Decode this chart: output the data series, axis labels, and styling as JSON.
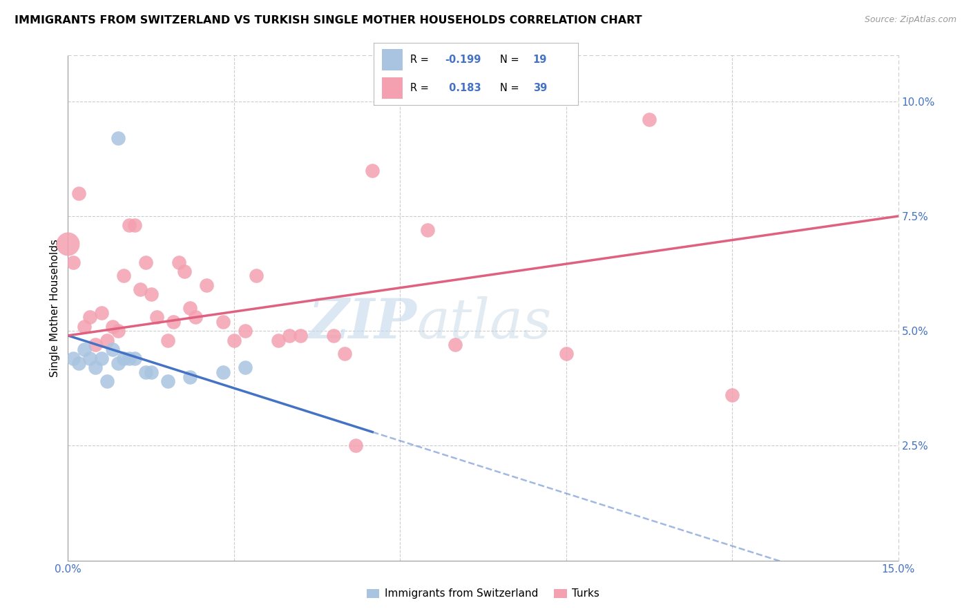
{
  "title": "IMMIGRANTS FROM SWITZERLAND VS TURKISH SINGLE MOTHER HOUSEHOLDS CORRELATION CHART",
  "source": "Source: ZipAtlas.com",
  "ylabel": "Single Mother Households",
  "xlim": [
    0,
    0.15
  ],
  "ylim": [
    0,
    0.11
  ],
  "xticks": [
    0.0,
    0.03,
    0.06,
    0.09,
    0.12,
    0.15
  ],
  "yticks_right": [
    0.025,
    0.05,
    0.075,
    0.1
  ],
  "ytick_labels_right": [
    "2.5%",
    "5.0%",
    "7.5%",
    "10.0%"
  ],
  "color_swiss": "#a8c4e0",
  "color_turks": "#f4a0b0",
  "line_color_swiss": "#4472c4",
  "line_color_turks": "#e06080",
  "watermark_zip": "ZIP",
  "watermark_atlas": "atlas",
  "swiss_x": [
    0.001,
    0.002,
    0.003,
    0.004,
    0.005,
    0.006,
    0.007,
    0.008,
    0.009,
    0.01,
    0.011,
    0.012,
    0.014,
    0.015,
    0.018,
    0.022,
    0.028,
    0.032,
    0.009
  ],
  "swiss_y": [
    0.044,
    0.043,
    0.046,
    0.044,
    0.042,
    0.044,
    0.039,
    0.046,
    0.043,
    0.044,
    0.044,
    0.044,
    0.041,
    0.041,
    0.039,
    0.04,
    0.041,
    0.042,
    0.092
  ],
  "turks_x": [
    0.001,
    0.002,
    0.003,
    0.004,
    0.005,
    0.006,
    0.007,
    0.008,
    0.009,
    0.01,
    0.011,
    0.012,
    0.013,
    0.014,
    0.015,
    0.016,
    0.018,
    0.019,
    0.02,
    0.021,
    0.022,
    0.023,
    0.025,
    0.028,
    0.03,
    0.032,
    0.034,
    0.038,
    0.04,
    0.042,
    0.048,
    0.05,
    0.052,
    0.055,
    0.065,
    0.07,
    0.09,
    0.105,
    0.12
  ],
  "turks_y": [
    0.065,
    0.08,
    0.051,
    0.053,
    0.047,
    0.054,
    0.048,
    0.051,
    0.05,
    0.062,
    0.073,
    0.073,
    0.059,
    0.065,
    0.058,
    0.053,
    0.048,
    0.052,
    0.065,
    0.063,
    0.055,
    0.053,
    0.06,
    0.052,
    0.048,
    0.05,
    0.062,
    0.048,
    0.049,
    0.049,
    0.049,
    0.045,
    0.025,
    0.085,
    0.072,
    0.047,
    0.045,
    0.096,
    0.036
  ],
  "background_color": "#ffffff",
  "grid_color": "#cccccc",
  "swiss_line_start_x": 0.0,
  "swiss_line_start_y": 0.049,
  "swiss_line_end_x": 0.055,
  "swiss_line_end_y": 0.028,
  "turks_line_start_x": 0.0,
  "turks_line_start_y": 0.049,
  "turks_line_end_x": 0.15,
  "turks_line_end_y": 0.075
}
